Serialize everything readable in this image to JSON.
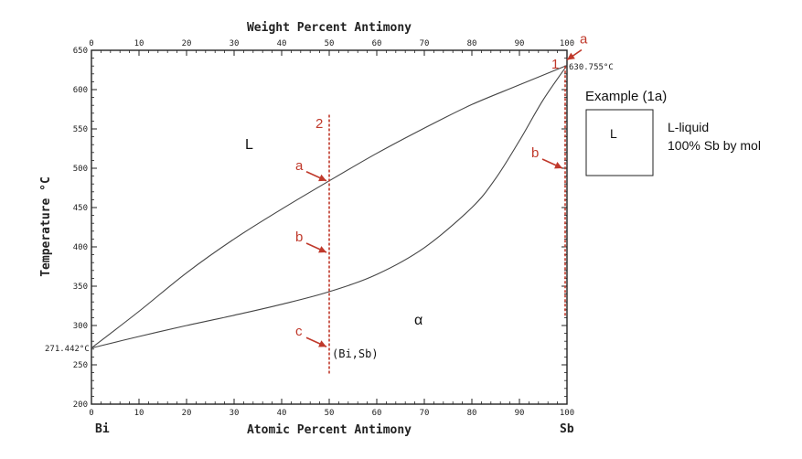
{
  "chart_data": {
    "type": "line",
    "top_axis_title": "Weight Percent Antimony",
    "bottom_axis_title": "Atomic Percent Antimony",
    "y_axis_title": "Temperature °C",
    "x_ticks": [
      "0",
      "10",
      "20",
      "30",
      "40",
      "50",
      "60",
      "70",
      "80",
      "90",
      "100"
    ],
    "top_ticks": [
      "0",
      "10",
      "20",
      "30",
      "40",
      "50",
      "60",
      "70",
      "80",
      "90",
      "100"
    ],
    "y_ticks": [
      "200",
      "250",
      "300",
      "350",
      "400",
      "450",
      "500",
      "550",
      "600",
      "650"
    ],
    "xlim": [
      0,
      100
    ],
    "ylim": [
      200,
      650
    ],
    "series": [
      {
        "x": [
          0,
          10,
          20,
          30,
          40,
          50,
          60,
          70,
          80,
          90,
          100
        ],
        "y": [
          271.4,
          318,
          367,
          410,
          448,
          484,
          519,
          551,
          581,
          606,
          630.8
        ]
      },
      {
        "x": [
          0,
          10,
          20,
          30,
          40,
          50,
          60,
          70,
          80,
          85,
          90,
          95,
          100
        ],
        "y": [
          271.4,
          286,
          300,
          313,
          327,
          343,
          365,
          399,
          450,
          487,
          535,
          587,
          630.8
        ]
      }
    ],
    "vertical_markers": [
      {
        "x": 50,
        "y_top": 568,
        "y_bottom": 237
      },
      {
        "x": 100,
        "y_top": 630,
        "y_bottom": 312
      }
    ],
    "point_markers": [
      {
        "label": "a",
        "x": 50,
        "y": 484
      },
      {
        "label": "b",
        "x": 50,
        "y": 393
      },
      {
        "label": "c",
        "x": 50,
        "y": 273
      },
      {
        "label": "a",
        "x": 100,
        "y": 630.8
      },
      {
        "label": "b",
        "x": 100,
        "y": 500
      }
    ],
    "endpoints": {
      "left": "Bi",
      "right": "Sb"
    },
    "temp_labels": {
      "left": "271.442°C",
      "right": "630.755°C"
    },
    "line_labels": {
      "line2": "2",
      "line1": "1"
    },
    "region_labels": {
      "liquid": "L",
      "solid": "α",
      "solid_phase": "(Bi,Sb)"
    },
    "colors": {
      "annotation": "#c0392b",
      "frame": "#222222",
      "curve": "#444444"
    }
  },
  "legend": {
    "title": "Example (1a)",
    "box_label": "L",
    "line1": "L-liquid",
    "line2": "100% Sb by mol"
  }
}
